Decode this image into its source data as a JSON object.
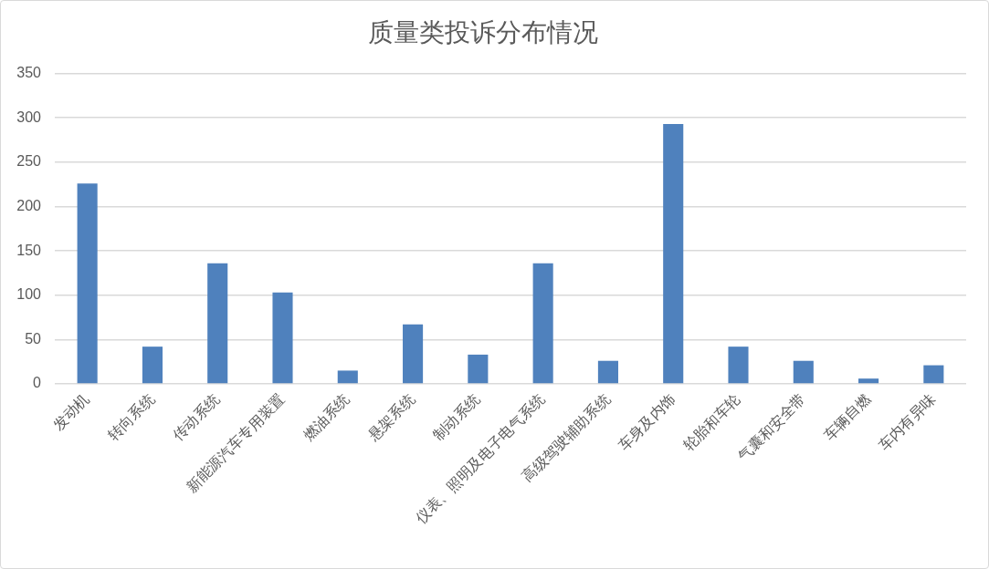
{
  "chart_data": {
    "type": "bar",
    "title": "质量类投诉分布情况",
    "categories": [
      "发动机",
      "转向系统",
      "传动系统",
      "新能源汽车专用装置",
      "燃油系统",
      "悬架系统",
      "制动系统",
      "仪表、照明及电子电气系统",
      "高级驾驶辅助系统",
      "车身及内饰",
      "轮胎和车轮",
      "气囊和安全带",
      "车辆自燃",
      "车内有异味"
    ],
    "values": [
      226,
      42,
      136,
      103,
      15,
      67,
      33,
      136,
      26,
      293,
      42,
      26,
      6,
      21
    ],
    "color": "#4f81bd",
    "ylim": [
      0,
      350
    ],
    "yticks": [
      0,
      50,
      100,
      150,
      200,
      250,
      300,
      350
    ],
    "grid": "y"
  }
}
